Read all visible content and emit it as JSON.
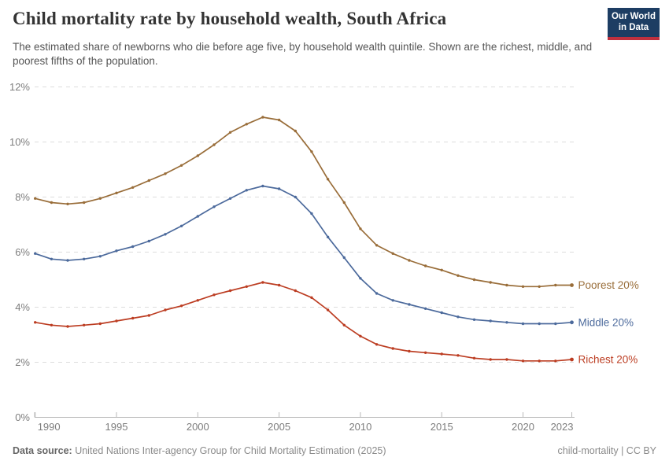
{
  "header": {
    "logo": {
      "line1": "Our World",
      "line2": "in Data",
      "bg": "#1d3d63",
      "accent": "#c0303e"
    }
  },
  "footer": {
    "source_label": "Data source:",
    "source_text": " United Nations Inter-agency Group for Child Mortality Estimation (2025)",
    "note_right": "child-mortality | CC BY"
  },
  "chart_data": {
    "type": "line",
    "title": "Child mortality rate by household wealth, South Africa",
    "subtitle": "The estimated share of newborns who die before age five, by household wealth quintile. Shown are the richest, middle, and poorest fifths of the population.",
    "xlabel": "",
    "ylabel": "",
    "ylim": [
      0,
      12
    ],
    "grid": "horizontal-dashed",
    "legend_position": "line-end-labels-right",
    "ytick_values": [
      0,
      2,
      4,
      6,
      8,
      10,
      12
    ],
    "ytick_labels": [
      "0%",
      "2%",
      "4%",
      "6%",
      "8%",
      "10%",
      "12%"
    ],
    "xticks": [
      1990,
      1995,
      2000,
      2005,
      2010,
      2015,
      2020,
      2023
    ],
    "x": [
      1990,
      1991,
      1992,
      1993,
      1994,
      1995,
      1996,
      1997,
      1998,
      1999,
      2000,
      2001,
      2002,
      2003,
      2004,
      2005,
      2006,
      2007,
      2008,
      2009,
      2010,
      2011,
      2012,
      2013,
      2014,
      2015,
      2016,
      2017,
      2018,
      2019,
      2020,
      2021,
      2022,
      2023
    ],
    "unit": "%",
    "series": [
      {
        "name": "Poorest 20%",
        "color": "#996D39",
        "values": [
          7.95,
          7.8,
          7.75,
          7.8,
          7.95,
          8.15,
          8.35,
          8.6,
          8.85,
          9.15,
          9.5,
          9.9,
          10.35,
          10.65,
          10.9,
          10.8,
          10.4,
          9.65,
          8.65,
          7.8,
          6.85,
          6.25,
          5.95,
          5.7,
          5.5,
          5.35,
          5.15,
          5.0,
          4.9,
          4.8,
          4.75,
          4.75,
          4.8,
          4.8
        ]
      },
      {
        "name": "Middle 20%",
        "color": "#4C6A9C",
        "values": [
          5.95,
          5.75,
          5.7,
          5.75,
          5.85,
          6.05,
          6.2,
          6.4,
          6.65,
          6.95,
          7.3,
          7.65,
          7.95,
          8.25,
          8.4,
          8.3,
          8.0,
          7.4,
          6.55,
          5.8,
          5.05,
          4.5,
          4.25,
          4.1,
          3.95,
          3.8,
          3.65,
          3.55,
          3.5,
          3.45,
          3.4,
          3.4,
          3.4,
          3.45
        ]
      },
      {
        "name": "Richest 20%",
        "color": "#BC3D22",
        "values": [
          3.45,
          3.35,
          3.3,
          3.35,
          3.4,
          3.5,
          3.6,
          3.7,
          3.9,
          4.05,
          4.25,
          4.45,
          4.6,
          4.75,
          4.9,
          4.8,
          4.6,
          4.35,
          3.9,
          3.35,
          2.95,
          2.65,
          2.5,
          2.4,
          2.35,
          2.3,
          2.25,
          2.15,
          2.1,
          2.1,
          2.05,
          2.05,
          2.05,
          2.1
        ]
      }
    ]
  }
}
